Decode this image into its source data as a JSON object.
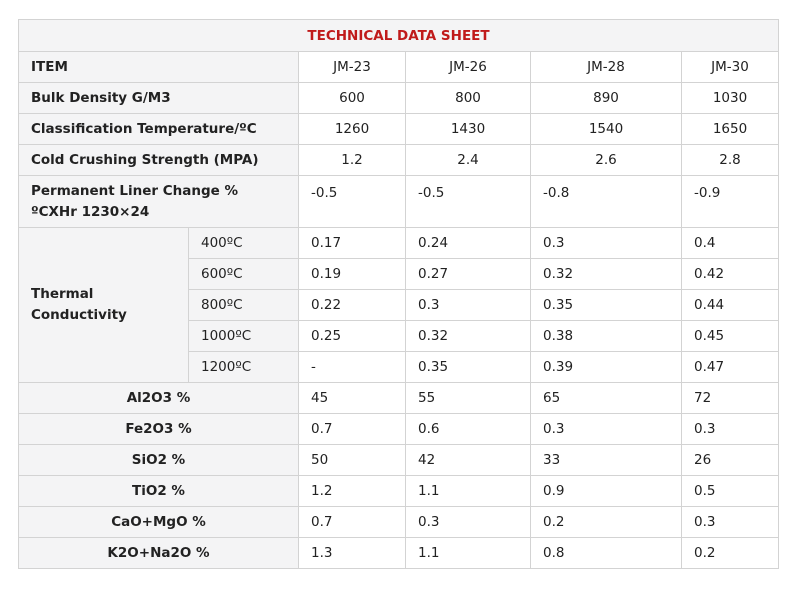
{
  "title": "TECHNICAL DATA SHEET",
  "header": {
    "item": "ITEM",
    "cols": [
      "JM-23",
      "JM-26",
      "JM-28",
      "JM-30"
    ]
  },
  "props": [
    {
      "label": "Bulk Density G/M3",
      "values": [
        "600",
        "800",
        "890",
        "1030"
      ]
    },
    {
      "label": "Classification Temperature/ºC",
      "values": [
        "1260",
        "1430",
        "1540",
        "1650"
      ]
    },
    {
      "label": "Cold Crushing Strength (MPA)",
      "values": [
        "1.2",
        "2.4",
        "2.6",
        "2.8"
      ]
    }
  ],
  "plc": {
    "label_line1": "Permanent Liner Change %",
    "label_line2": "ºCXHr 1230×24",
    "values": [
      "-0.5",
      "-0.5",
      "-0.8",
      "-0.9"
    ]
  },
  "thermal": {
    "label_line1": "Thermal",
    "label_line2": "Conductivity",
    "rows": [
      {
        "temp": "400ºC",
        "values": [
          "0.17",
          "0.24",
          "0.3",
          "0.4"
        ]
      },
      {
        "temp": "600ºC",
        "values": [
          "0.19",
          "0.27",
          "0.32",
          "0.42"
        ]
      },
      {
        "temp": "800ºC",
        "values": [
          "0.22",
          "0.3",
          "0.35",
          "0.44"
        ]
      },
      {
        "temp": "1000ºC",
        "values": [
          "0.25",
          "0.32",
          "0.38",
          "0.45"
        ]
      },
      {
        "temp": "1200ºC",
        "values": [
          "-",
          "0.35",
          "0.39",
          "0.47"
        ]
      }
    ]
  },
  "chem": [
    {
      "label": "Al2O3 %",
      "values": [
        "45",
        "55",
        "65",
        "72"
      ]
    },
    {
      "label": "Fe2O3 %",
      "values": [
        "0.7",
        "0.6",
        "0.3",
        "0.3"
      ]
    },
    {
      "label": "SiO2 %",
      "values": [
        "50",
        "42",
        "33",
        "26"
      ]
    },
    {
      "label": "TiO2 %",
      "values": [
        "1.2",
        "1.1",
        "0.9",
        "0.5"
      ]
    },
    {
      "label": "CaO+MgO %",
      "values": [
        "0.7",
        "0.3",
        "0.2",
        "0.3"
      ]
    },
    {
      "label": "K2O+Na2O %",
      "values": [
        "1.3",
        "1.1",
        "0.8",
        "0.2"
      ]
    }
  ]
}
